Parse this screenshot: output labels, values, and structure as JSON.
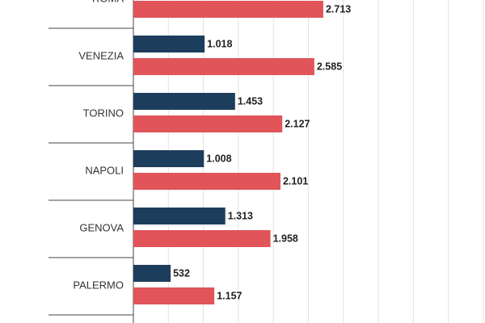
{
  "chart_data": {
    "type": "bar",
    "orientation": "horizontal",
    "categories": [
      "ROMA",
      "VENEZIA",
      "TORINO",
      "NAPOLI",
      "GENOVA",
      "PALERMO"
    ],
    "series": [
      {
        "color": "#1d3d5c",
        "values": [
          null,
          1018,
          1453,
          1008,
          1313,
          532
        ],
        "value_labels": [
          null,
          "1.018",
          "1.453",
          "1.008",
          "1.313",
          "532"
        ]
      },
      {
        "color": "#e0545a",
        "values": [
          2713,
          2585,
          2127,
          2101,
          1958,
          1157
        ],
        "value_labels": [
          "2.713",
          "2.585",
          "2.127",
          "2.101",
          "1.958",
          "1.157"
        ]
      }
    ],
    "xlim": [
      0,
      5000
    ],
    "xticks": [
      0,
      500,
      1000,
      1500,
      2000,
      2500,
      3000,
      3500,
      4000,
      4500,
      5000
    ],
    "grid": true
  }
}
